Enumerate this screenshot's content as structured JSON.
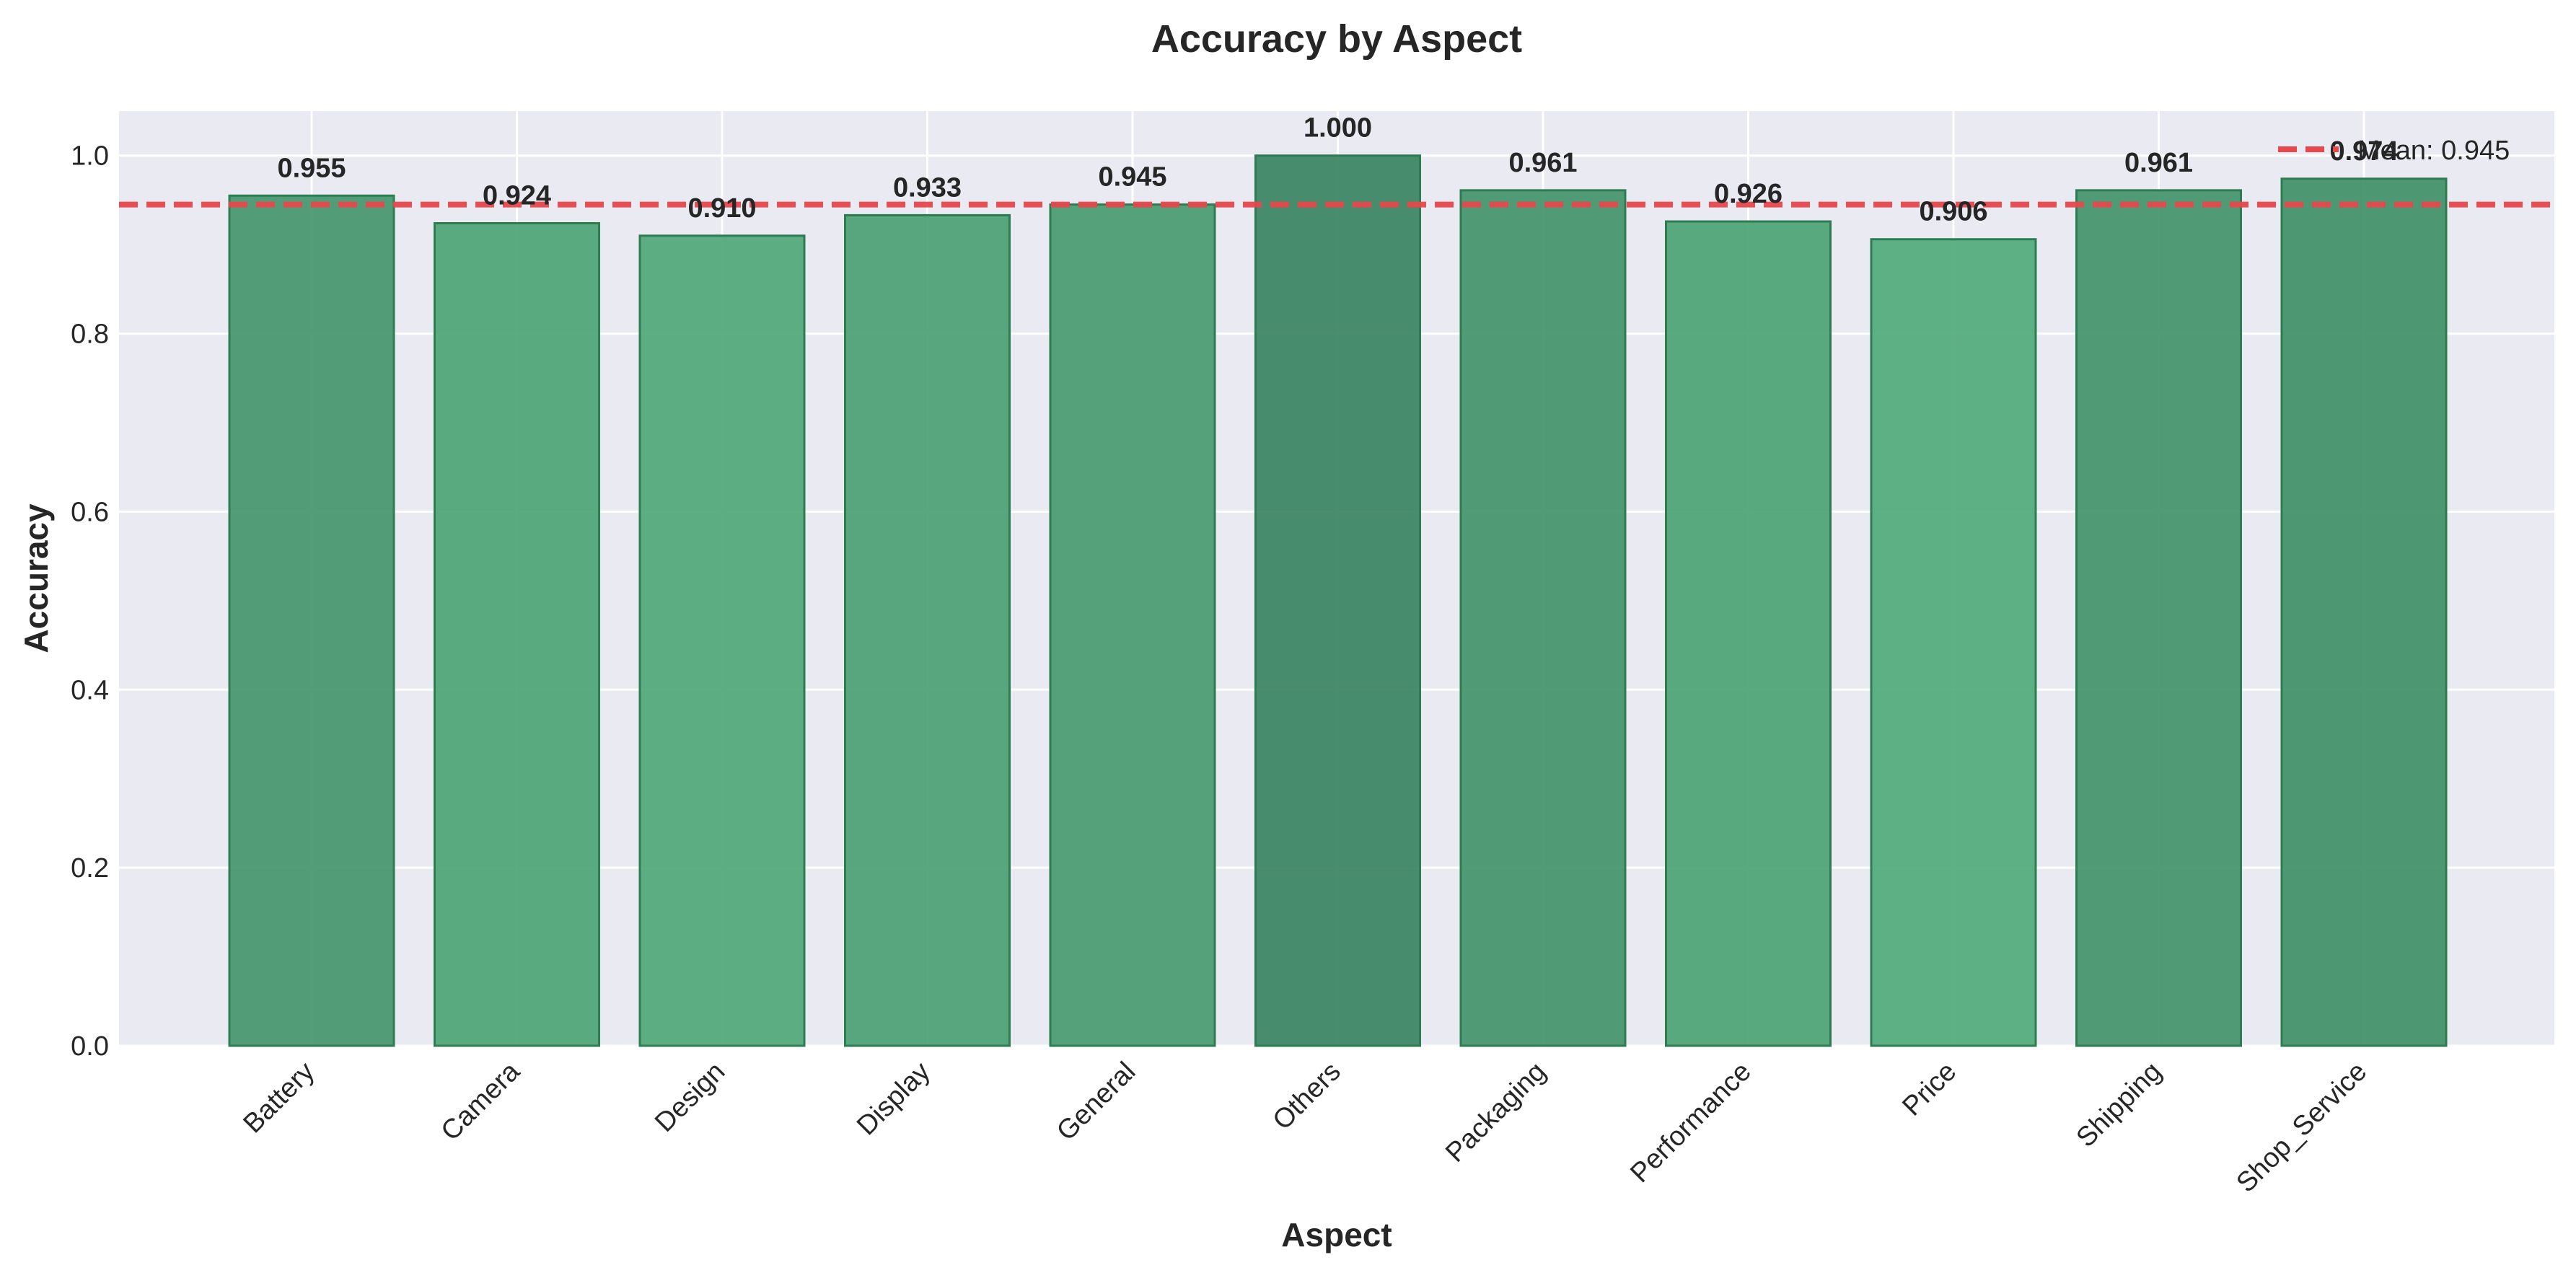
{
  "chart_data": {
    "type": "bar",
    "title": "Accuracy by Aspect",
    "xlabel": "Aspect",
    "ylabel": "Accuracy",
    "categories": [
      "Battery",
      "Camera",
      "Design",
      "Display",
      "General",
      "Others",
      "Packaging",
      "Performance",
      "Price",
      "Shipping",
      "Shop_Service"
    ],
    "values": [
      0.955,
      0.924,
      0.91,
      0.933,
      0.945,
      1.0,
      0.961,
      0.926,
      0.906,
      0.961,
      0.974
    ],
    "value_labels": [
      "0.955",
      "0.924",
      "0.910",
      "0.933",
      "0.945",
      "1.000",
      "0.961",
      "0.926",
      "0.906",
      "0.961",
      "0.974"
    ],
    "ylim": [
      0,
      1.05
    ],
    "yticks": [
      0.0,
      0.2,
      0.4,
      0.6,
      0.8,
      1.0
    ],
    "ytick_labels": [
      "0.0",
      "0.2",
      "0.4",
      "0.6",
      "0.8",
      "1.0"
    ],
    "mean_line": {
      "value": 0.945,
      "label": "Mean: 0.945",
      "color": "#e8474b",
      "style": "dashed"
    },
    "bar_color_scale": {
      "low": "#55ad7c",
      "high": "#3f8766",
      "edge": "#2e7d52"
    },
    "background": "#eaeaf2",
    "grid": true,
    "legend_placement": "top-right"
  }
}
